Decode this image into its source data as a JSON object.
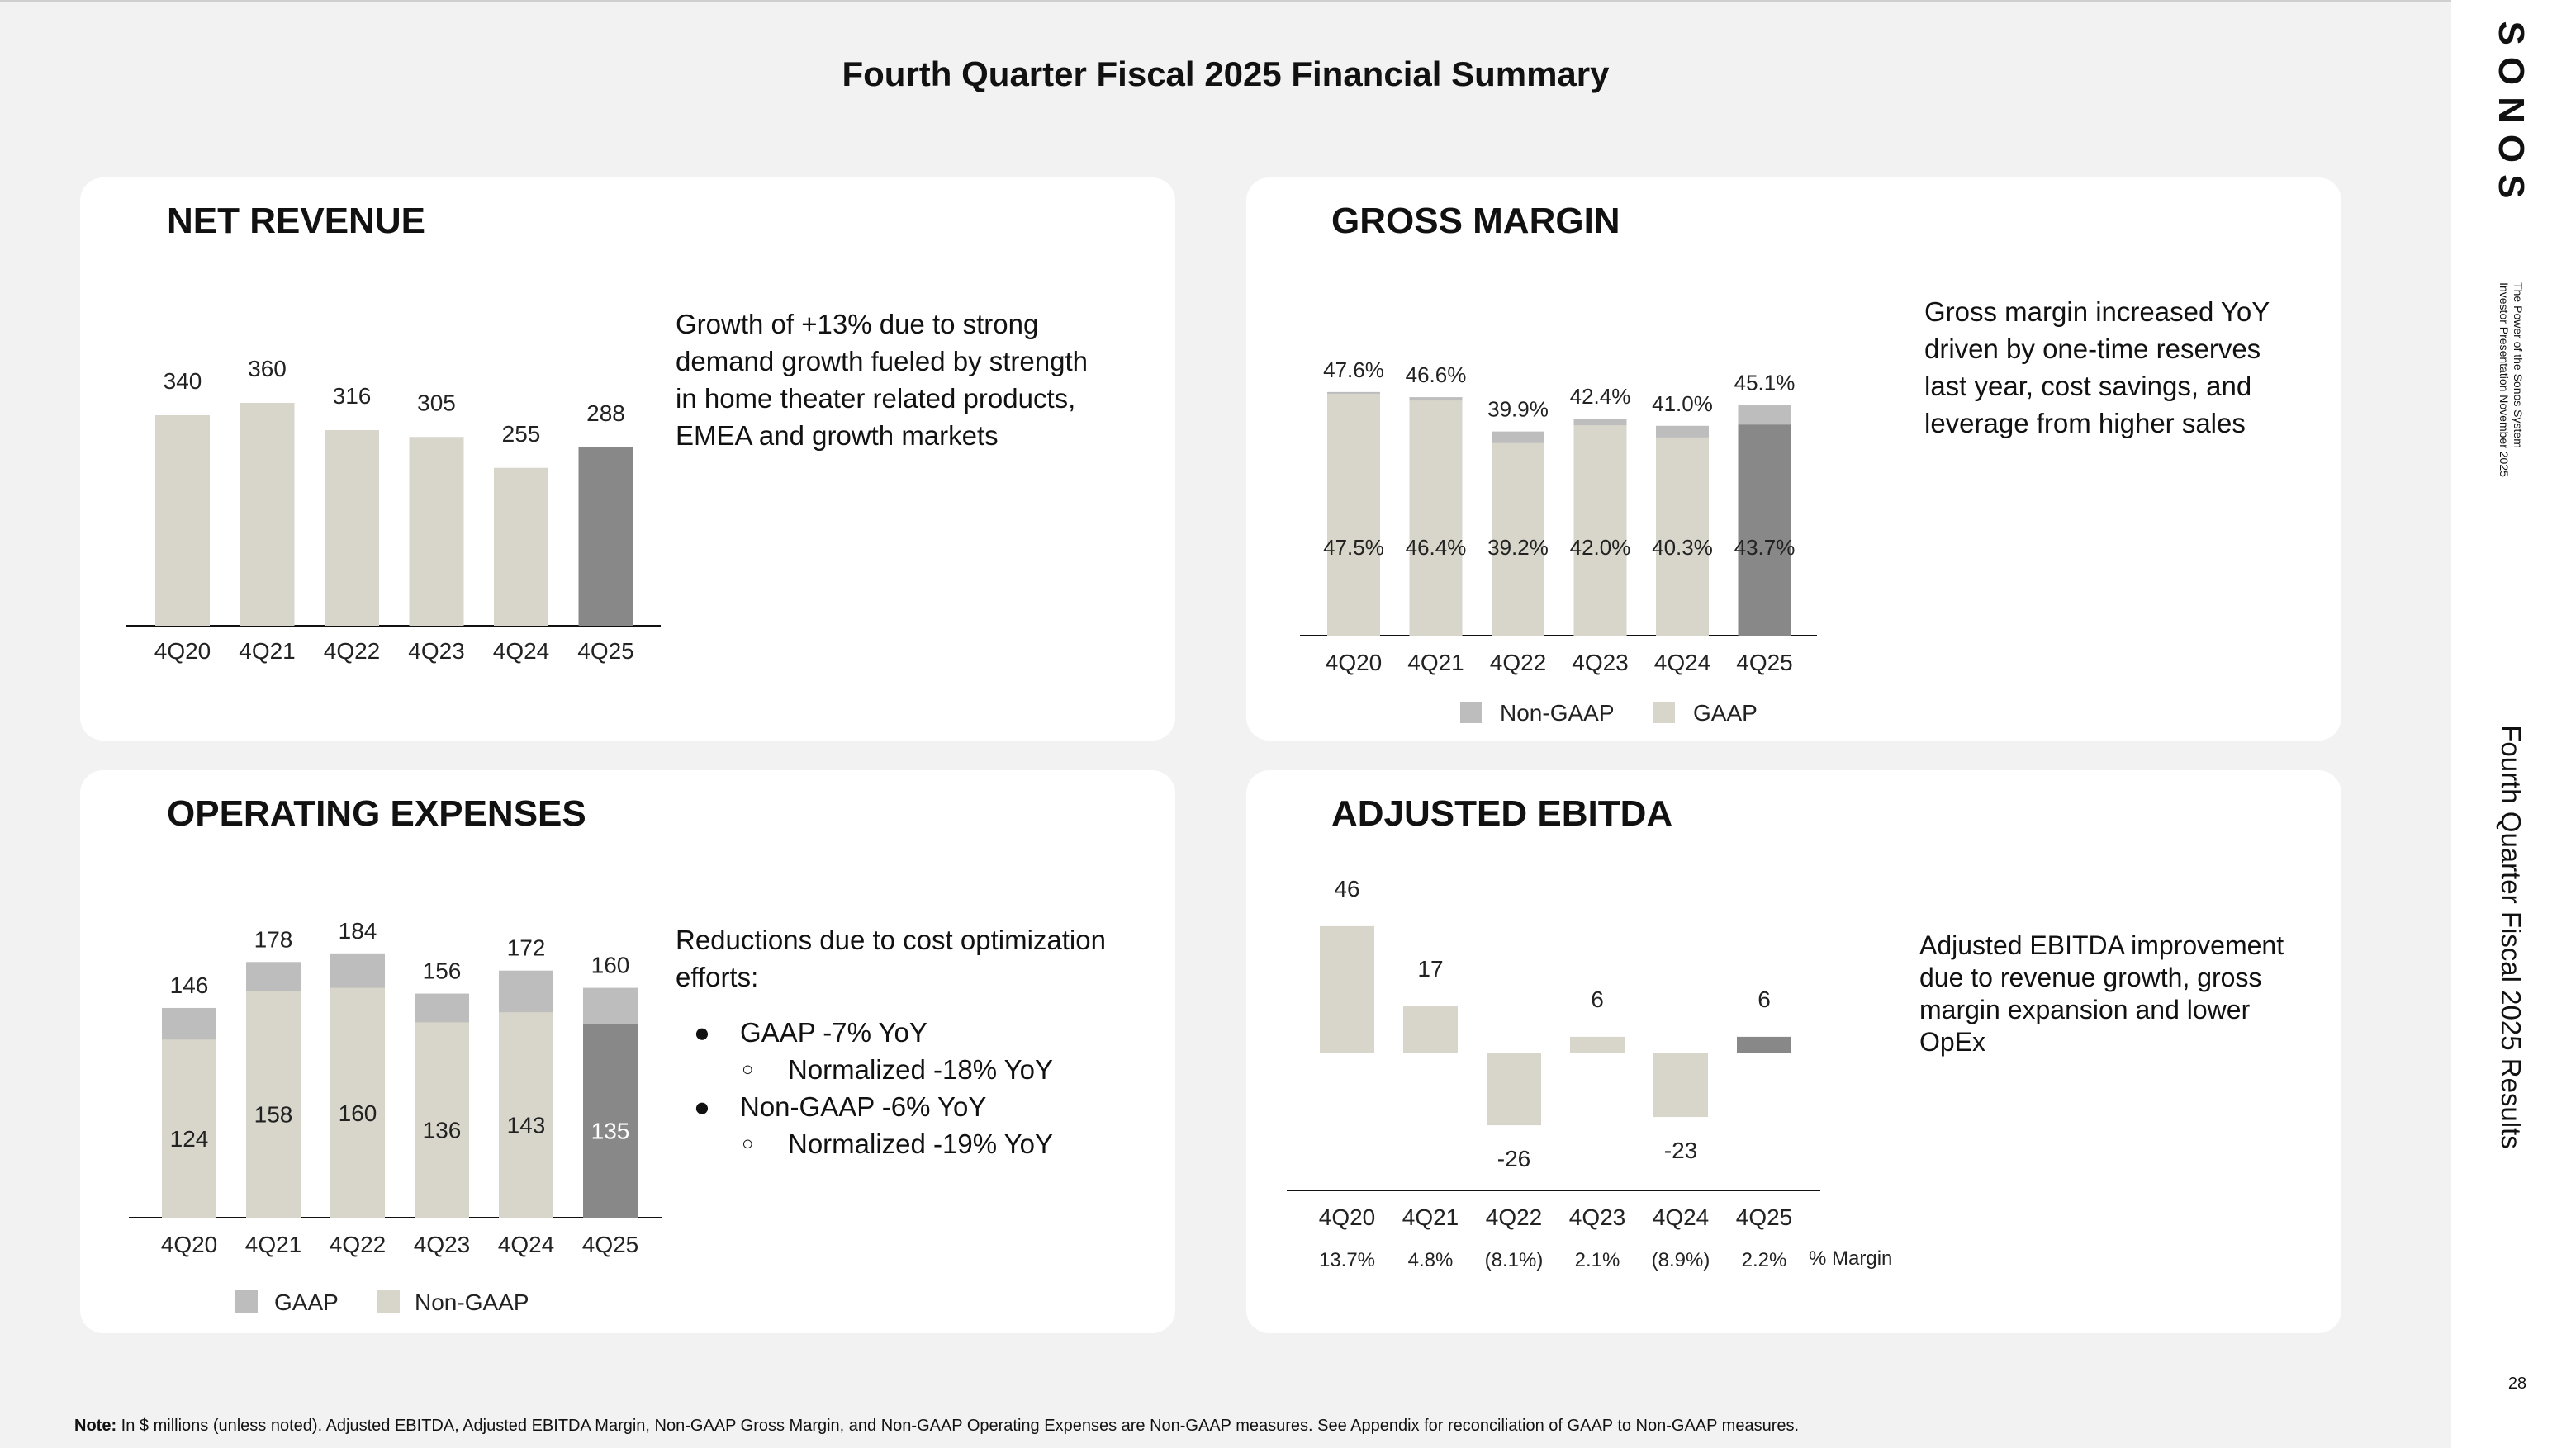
{
  "title": "Fourth Quarter Fiscal 2025 Financial Summary",
  "brand": {
    "logo": "SONOS",
    "tagline_line1": "The Power of the Sonos System",
    "tagline_line2": "Investor Presentation November 2025",
    "side_title": "Fourth Quarter Fiscal 2025 Results",
    "page_number": "28"
  },
  "colors": {
    "light_bar": "#d8d6ca",
    "dark_bar": "#888888",
    "gray_segment": "#bdbdbd"
  },
  "net_revenue": {
    "heading": "NET REVENUE",
    "description": "Growth of +13% due to strong demand growth fueled by strength in home theater related products, EMEA and growth markets"
  },
  "gross_margin": {
    "heading": "GROSS MARGIN",
    "description": "Gross margin increased YoY driven by one-time reserves last year, cost savings, and leverage from higher sales"
  },
  "opex": {
    "heading": "OPERATING EXPENSES",
    "intro": "Reductions due to cost optimization efforts:",
    "bullets": [
      {
        "text": "GAAP -7% YoY",
        "sub": "Normalized -18% YoY"
      },
      {
        "text": "Non-GAAP -6% YoY",
        "sub": "Normalized -19% YoY"
      }
    ]
  },
  "ebitda": {
    "heading": "ADJUSTED EBITDA",
    "description": "Adjusted EBITDA improvement due to revenue growth, gross margin expansion and lower OpEx"
  },
  "note": {
    "label": "Note:",
    "text": "In $ millions (unless noted). Adjusted EBITDA, Adjusted EBITDA Margin, Non-GAAP Gross Margin, and Non-GAAP Operating Expenses are Non-GAAP measures. See Appendix for reconciliation of GAAP to Non-GAAP measures."
  },
  "chart_data": [
    {
      "id": "net_revenue",
      "type": "bar",
      "title": "NET REVENUE",
      "categories": [
        "4Q20",
        "4Q21",
        "4Q22",
        "4Q23",
        "4Q24",
        "4Q25"
      ],
      "values": [
        340,
        360,
        316,
        305,
        255,
        288
      ],
      "value_labels": [
        "340",
        "360",
        "316",
        "305",
        "255",
        "288"
      ],
      "ylim": [
        0,
        380
      ],
      "highlight_index": 5
    },
    {
      "id": "gross_margin",
      "type": "bar",
      "title": "GROSS MARGIN",
      "categories": [
        "4Q20",
        "4Q21",
        "4Q22",
        "4Q23",
        "4Q24",
        "4Q25"
      ],
      "series": [
        {
          "name": "GAAP",
          "values": [
            47.5,
            46.4,
            39.2,
            42.0,
            40.3,
            43.7
          ],
          "labels": [
            "47.5%",
            "46.4%",
            "39.2%",
            "42.0%",
            "40.3%",
            "43.7%"
          ]
        },
        {
          "name": "Non-GAAP",
          "values": [
            47.6,
            46.6,
            39.9,
            42.4,
            41.0,
            45.1
          ],
          "labels": [
            "47.6%",
            "46.6%",
            "39.9%",
            "42.4%",
            "41.0%",
            "45.1%"
          ]
        }
      ],
      "legend": [
        "Non-GAAP",
        "GAAP"
      ],
      "ylim": [
        0,
        50
      ],
      "highlight_index": 5
    },
    {
      "id": "opex",
      "type": "bar",
      "title": "OPERATING EXPENSES",
      "categories": [
        "4Q20",
        "4Q21",
        "4Q22",
        "4Q23",
        "4Q24",
        "4Q25"
      ],
      "series": [
        {
          "name": "GAAP",
          "values": [
            146,
            178,
            184,
            156,
            172,
            160
          ],
          "labels": [
            "146",
            "178",
            "184",
            "156",
            "172",
            "160"
          ]
        },
        {
          "name": "Non-GAAP",
          "values": [
            124,
            158,
            160,
            136,
            143,
            135
          ],
          "labels": [
            "124",
            "158",
            "160",
            "136",
            "143",
            "135"
          ]
        }
      ],
      "legend": [
        "GAAP",
        "Non-GAAP"
      ],
      "ylim": [
        0,
        200
      ],
      "highlight_index": 5
    },
    {
      "id": "ebitda",
      "type": "bar",
      "title": "ADJUSTED EBITDA",
      "categories": [
        "4Q20",
        "4Q21",
        "4Q22",
        "4Q23",
        "4Q24",
        "4Q25"
      ],
      "values": [
        46,
        17,
        -26,
        6,
        -23,
        6
      ],
      "value_labels": [
        "46",
        "17",
        "-26",
        "6",
        "-23",
        "6"
      ],
      "margins": [
        "13.7%",
        "4.8%",
        "(8.1%)",
        "2.1%",
        "(8.9%)",
        "2.2%"
      ],
      "margin_label": "% Margin",
      "ylim": [
        -30,
        50
      ],
      "highlight_index": 5
    }
  ]
}
